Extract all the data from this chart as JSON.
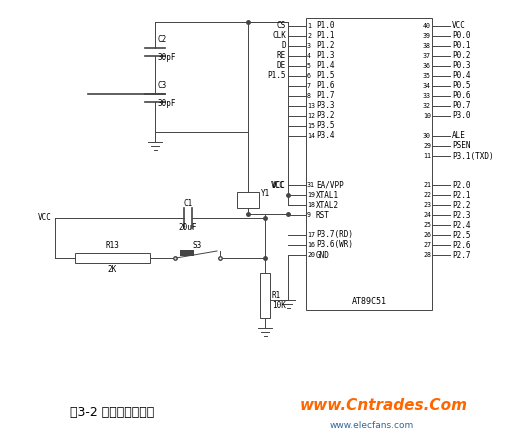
{
  "title": "图3-2 单片机最小系统",
  "watermark1": "www.Cntrades.Com",
  "watermark2": "www.elecfans.com",
  "bg_color": "#ffffff",
  "line_color": "#444444",
  "text_color": "#000000",
  "orange_color": "#FF6600",
  "blue_color": "#336699",
  "fig_width": 5.17,
  "fig_height": 4.42,
  "dpi": 100
}
